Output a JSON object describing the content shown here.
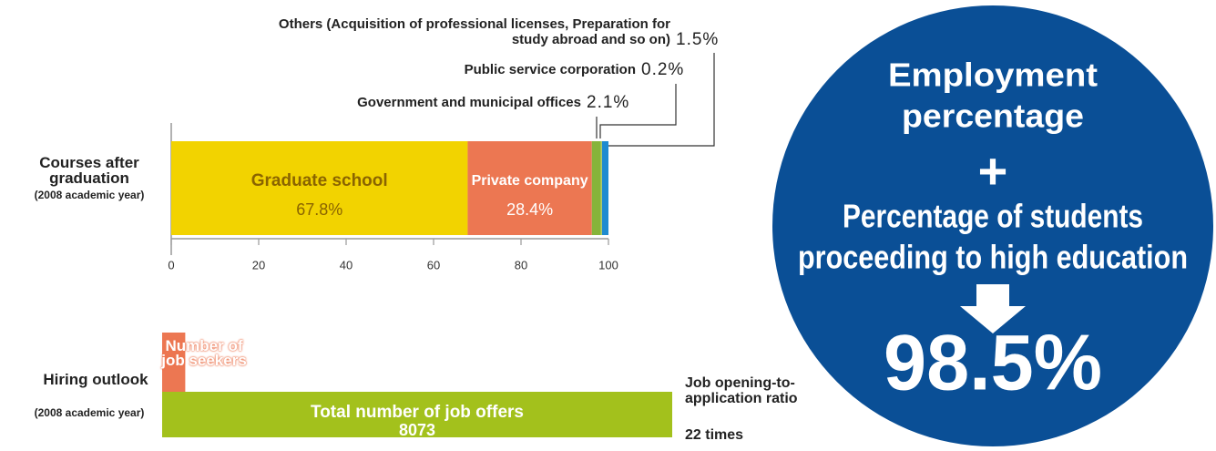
{
  "chart_data": [
    {
      "type": "stacked-bar",
      "title": "Courses after graduation",
      "subtitle": "(2008 academic year)",
      "series": [
        {
          "name": "Graduate school",
          "color": "#f2d300",
          "values": [
            67.8
          ],
          "value_labels": [
            "67.8%"
          ]
        },
        {
          "name": "Private company",
          "color": "#ec7752",
          "values": [
            28.4
          ],
          "value_labels": [
            "28.4%"
          ]
        },
        {
          "name": "Government and municipal offices",
          "color": "#86b43a",
          "values": [
            2.1
          ],
          "value_labels": [
            "2.1%"
          ]
        },
        {
          "name": "Public service corporation",
          "color": "#c8d23a",
          "values": [
            0.2
          ],
          "value_labels": [
            "0.2%"
          ]
        },
        {
          "name": "Others (Acquisition of professional licenses, Preparation for study abroad and so on)",
          "color": "#1f8bd0",
          "values": [
            1.5
          ],
          "value_labels": [
            "1.5%"
          ]
        }
      ],
      "xlim": [
        0,
        100
      ],
      "xticks": [
        0,
        20,
        40,
        60,
        80,
        100
      ]
    },
    {
      "type": "bar",
      "title": "Hiring outlook",
      "subtitle": "(2008 academic year)",
      "categories": [
        "Number of job seekers",
        "Total number of job offers"
      ],
      "values": [
        366,
        8073
      ],
      "colors": [
        "#ec7752",
        "#a3c11c"
      ],
      "annotation": {
        "label": "Job opening-to-application ratio",
        "value": "22 times"
      }
    }
  ],
  "summary": {
    "top_lines": [
      "Employment",
      "percentage"
    ],
    "operator": "+",
    "bottom_lines": [
      "Percentage of students",
      "proceeding to high education"
    ],
    "result": "98.5%"
  }
}
